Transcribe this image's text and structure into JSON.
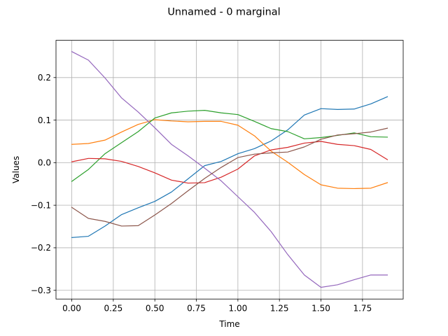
{
  "chart_data": {
    "type": "line",
    "title": "Unnamed - 0 marginal",
    "xlabel": "Time",
    "ylabel": "Values",
    "xlim": [
      -0.095,
      1.995
    ],
    "ylim": [
      -0.3205,
      0.2875
    ],
    "grid": true,
    "x": [
      0.0,
      0.1,
      0.2,
      0.3,
      0.4,
      0.5,
      0.6,
      0.7,
      0.8,
      0.9,
      1.0,
      1.1,
      1.2,
      1.3,
      1.4,
      1.5,
      1.6,
      1.7,
      1.8,
      1.9
    ],
    "x_ticks": [
      0.0,
      0.25,
      0.5,
      0.75,
      1.0,
      1.25,
      1.5,
      1.75
    ],
    "x_tick_labels": [
      "0.00",
      "0.25",
      "0.50",
      "0.75",
      "1.00",
      "1.25",
      "1.50",
      "1.75"
    ],
    "y_ticks": [
      -0.3,
      -0.2,
      -0.1,
      0.0,
      0.1,
      0.2
    ],
    "y_tick_labels": [
      "−0.3",
      "−0.2",
      "−0.1",
      "0.0",
      "0.1",
      "0.2"
    ],
    "series": [
      {
        "color": "#1f77b4",
        "values": [
          -0.176,
          -0.173,
          -0.149,
          -0.122,
          -0.106,
          -0.091,
          -0.069,
          -0.038,
          -0.007,
          0.003,
          0.021,
          0.033,
          0.051,
          0.077,
          0.112,
          0.127,
          0.125,
          0.126,
          0.138,
          0.155
        ]
      },
      {
        "color": "#ff7f0e",
        "values": [
          0.043,
          0.045,
          0.053,
          0.072,
          0.09,
          0.101,
          0.098,
          0.096,
          0.097,
          0.097,
          0.088,
          0.063,
          0.027,
          0.001,
          -0.028,
          -0.052,
          -0.06,
          -0.061,
          -0.06,
          -0.047
        ]
      },
      {
        "color": "#2ca02c",
        "values": [
          -0.044,
          -0.016,
          0.021,
          0.047,
          0.073,
          0.105,
          0.117,
          0.121,
          0.123,
          0.117,
          0.113,
          0.097,
          0.08,
          0.073,
          0.056,
          0.059,
          0.064,
          0.07,
          0.061,
          0.06
        ]
      },
      {
        "color": "#d62728",
        "values": [
          0.002,
          0.01,
          0.009,
          0.003,
          -0.009,
          -0.024,
          -0.041,
          -0.048,
          -0.047,
          -0.034,
          -0.015,
          0.016,
          0.03,
          0.036,
          0.046,
          0.05,
          0.043,
          0.04,
          0.031,
          0.007
        ]
      },
      {
        "color": "#9467bd",
        "values": [
          0.261,
          0.241,
          0.199,
          0.152,
          0.119,
          0.082,
          0.043,
          0.016,
          -0.013,
          -0.043,
          -0.08,
          -0.117,
          -0.162,
          -0.216,
          -0.264,
          -0.293,
          -0.287,
          -0.275,
          -0.264,
          -0.264
        ]
      },
      {
        "color": "#8c564b",
        "values": [
          -0.105,
          -0.131,
          -0.138,
          -0.149,
          -0.148,
          -0.123,
          -0.096,
          -0.066,
          -0.037,
          -0.011,
          0.012,
          0.02,
          0.023,
          0.025,
          0.037,
          0.055,
          0.065,
          0.068,
          0.072,
          0.081
        ]
      }
    ]
  }
}
